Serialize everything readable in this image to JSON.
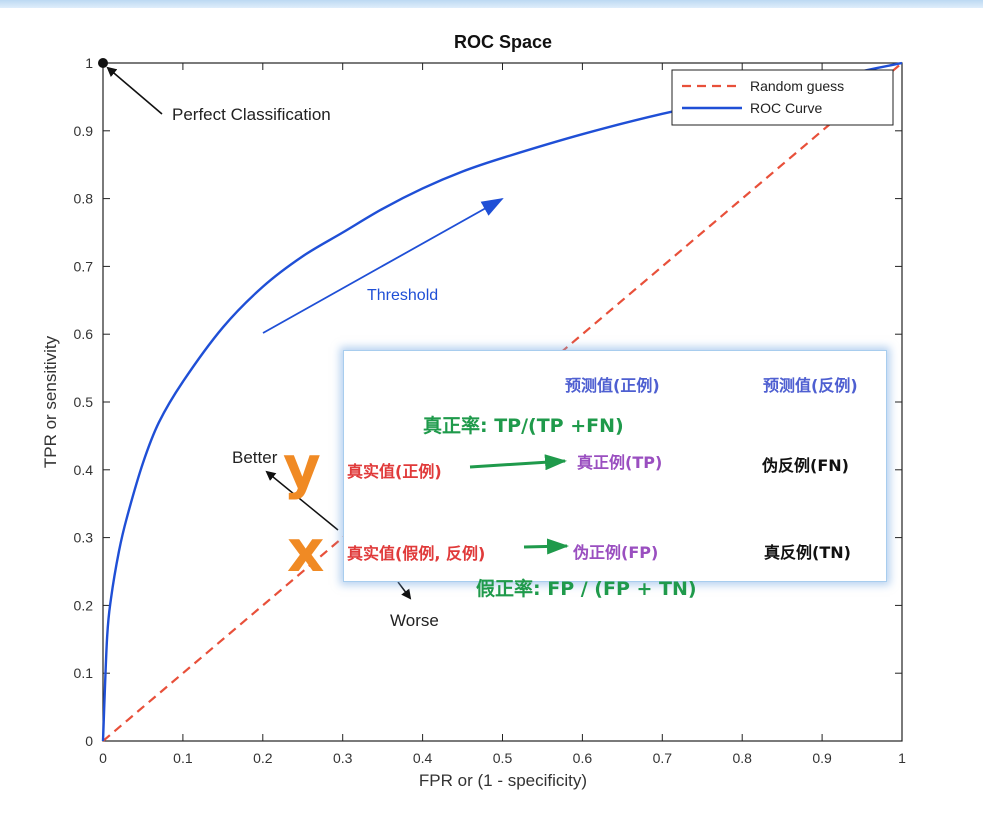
{
  "chart_data": {
    "type": "line",
    "title": "ROC Space",
    "xlabel": "FPR or (1 - specificity)",
    "ylabel": "TPR or sensitivity",
    "xlim": [
      0,
      1
    ],
    "ylim": [
      0,
      1
    ],
    "x_ticks": [
      "0",
      "0.1",
      "0.2",
      "0.3",
      "0.4",
      "0.5",
      "0.6",
      "0.7",
      "0.8",
      "0.9",
      "1"
    ],
    "y_ticks": [
      "0",
      "0.1",
      "0.2",
      "0.3",
      "0.4",
      "0.5",
      "0.6",
      "0.7",
      "0.8",
      "0.9",
      "1"
    ],
    "grid": false,
    "legend_position": "top-right",
    "series": [
      {
        "name": "Random guess",
        "style": "dashed",
        "color": "#e8503a",
        "x": [
          0,
          1
        ],
        "y": [
          0,
          1
        ]
      },
      {
        "name": "ROC Curve",
        "style": "solid",
        "color": "#1f4fd6",
        "x": [
          0,
          0.005,
          0.01,
          0.02,
          0.03,
          0.05,
          0.07,
          0.1,
          0.15,
          0.2,
          0.25,
          0.3,
          0.35,
          0.4,
          0.45,
          0.5,
          0.6,
          0.7,
          0.8,
          0.9,
          0.95,
          1.0
        ],
        "y": [
          0,
          0.15,
          0.21,
          0.28,
          0.33,
          0.41,
          0.47,
          0.53,
          0.61,
          0.67,
          0.715,
          0.75,
          0.785,
          0.815,
          0.84,
          0.86,
          0.895,
          0.925,
          0.95,
          0.975,
          0.988,
          1.0
        ]
      }
    ],
    "points": [
      {
        "x": 0,
        "y": 1,
        "label": "Perfect Classification"
      }
    ],
    "annotations": {
      "threshold": "Threshold",
      "better": "Better",
      "worse": "Worse"
    }
  },
  "overlay": {
    "header_pred_pos": "预测值(正例)",
    "header_pred_neg": "预测值(反例)",
    "tpr_formula": "真正率: TP/(TP +FN)",
    "actual_pos": "真实值(正例)",
    "actual_neg": "真实值(假例, 反例)",
    "tp": "真正例(TP)",
    "fn": "伪反例(FN)",
    "fp": "伪正例(FP)",
    "tn": "真反例(TN)",
    "fpr_formula": "假正率: FP / (FP + TN)",
    "letter_y": "y",
    "letter_x": "x"
  },
  "colors": {
    "roc": "#1f4fd6",
    "random": "#e8503a",
    "header_blue": "#4e5fd1",
    "formula_green": "#1f9a4b",
    "actual_red": "#e03a3a",
    "tp_purple": "#9a4fc0",
    "letter_orange": "#f08a24"
  }
}
